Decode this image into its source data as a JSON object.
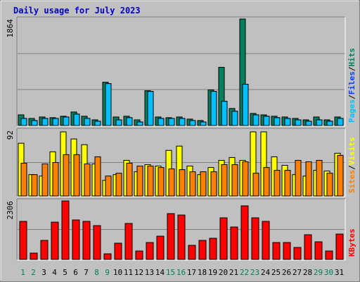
{
  "title": "Daily usage for July 2023",
  "legend_separator": "/",
  "chart_data": [
    {
      "type": "bar",
      "ylim": [
        0,
        1864
      ],
      "yticks": [
        1864
      ],
      "grid_divisions": 3,
      "series": [
        {
          "name": "Hits",
          "color": "#00805c",
          "values": [
            186,
            124,
            149,
            137,
            162,
            236,
            162,
            99,
            758,
            149,
            162,
            99,
            609,
            149,
            137,
            149,
            112,
            87,
            622,
            1019,
            298,
            1864,
            211,
            186,
            162,
            149,
            124,
            99,
            149,
            99,
            149
          ]
        },
        {
          "name": "Files",
          "color": "#0040ff",
          "values": [
            124,
            87,
            124,
            124,
            149,
            199,
            124,
            75,
            733,
            99,
            137,
            62,
            597,
            124,
            124,
            124,
            87,
            62,
            597,
            423,
            249,
            721,
            186,
            162,
            137,
            124,
            99,
            75,
            99,
            75,
            124
          ]
        },
        {
          "name": "Pages",
          "color": "#00c0ff",
          "values": [
            124,
            87,
            124,
            124,
            149,
            199,
            124,
            75,
            733,
            99,
            137,
            62,
            597,
            124,
            124,
            124,
            87,
            62,
            597,
            423,
            249,
            721,
            186,
            162,
            137,
            124,
            99,
            75,
            99,
            75,
            124
          ]
        }
      ]
    },
    {
      "type": "bar",
      "ylim": [
        0,
        92
      ],
      "yticks": [
        92
      ],
      "grid_divisions": 2,
      "series": [
        {
          "name": "Visits",
          "color": "#ffff00",
          "values": [
            74,
            30,
            28,
            62,
            90,
            80,
            72,
            45,
            22,
            30,
            50,
            34,
            44,
            42,
            64,
            70,
            42,
            30,
            40,
            50,
            54,
            50,
            90,
            90,
            55,
            43,
            30,
            28,
            36,
            35,
            60
          ]
        },
        {
          "name": "Sites",
          "color": "#ff8000",
          "values": [
            46,
            30,
            45,
            47,
            58,
            58,
            45,
            55,
            28,
            32,
            46,
            42,
            42,
            40,
            38,
            37,
            34,
            34,
            34,
            44,
            44,
            48,
            32,
            40,
            36,
            36,
            50,
            48,
            50,
            32,
            57
          ]
        }
      ]
    },
    {
      "type": "bar",
      "ylim": [
        0,
        2306
      ],
      "yticks": [
        2306
      ],
      "grid_divisions": 2,
      "categories": [
        "1",
        "2",
        "3",
        "4",
        "5",
        "6",
        "7",
        "8",
        "9",
        "10",
        "11",
        "12",
        "13",
        "14",
        "15",
        "16",
        "17",
        "18",
        "19",
        "20",
        "21",
        "22",
        "23",
        "24",
        "25",
        "26",
        "27",
        "28",
        "29",
        "30",
        "31"
      ],
      "category_colors": [
        "#00805c",
        "#00805c",
        "#000000",
        "#000000",
        "#000000",
        "#000000",
        "#000000",
        "#00805c",
        "#00805c",
        "#000000",
        "#000000",
        "#000000",
        "#000000",
        "#000000",
        "#00805c",
        "#00805c",
        "#000000",
        "#000000",
        "#000000",
        "#000000",
        "#000000",
        "#00805c",
        "#00805c",
        "#000000",
        "#000000",
        "#000000",
        "#000000",
        "#000000",
        "#00805c",
        "#00805c",
        "#000000"
      ],
      "series": [
        {
          "name": "KBytes",
          "color": "#ff0000",
          "values": [
            1500,
            250,
            750,
            1470,
            2306,
            1556,
            1500,
            1334,
            222,
            640,
            1417,
            333,
            667,
            917,
            1806,
            1750,
            556,
            750,
            834,
            1640,
            1278,
            2112,
            1640,
            1500,
            667,
            667,
            472,
            973,
            695,
            333,
            1000
          ]
        }
      ]
    }
  ]
}
